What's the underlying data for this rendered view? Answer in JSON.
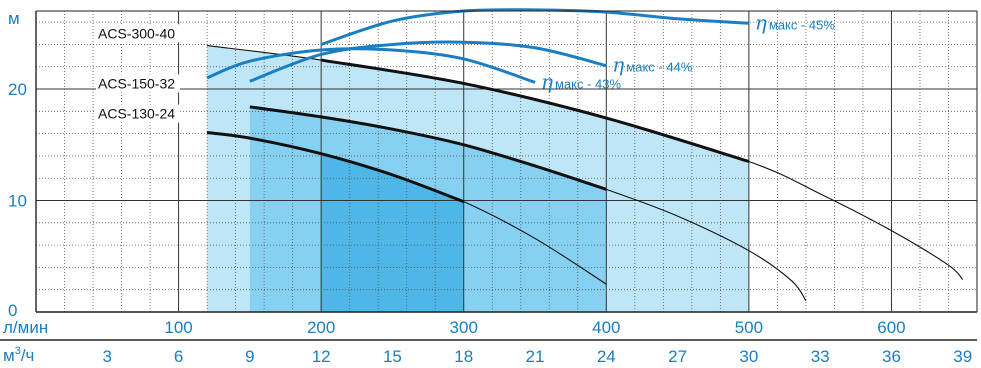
{
  "chart_data": {
    "type": "line",
    "y_label": "м",
    "y_ticks": [
      "0",
      "10",
      "20"
    ],
    "x_label": "л/мин",
    "x_ticks": [
      "100",
      "200",
      "300",
      "400",
      "500",
      "600"
    ],
    "x2_label_base": "м",
    "x2_label_sup": "3",
    "x2_label_tail": "/ч",
    "x2_ticks": [
      "3",
      "6",
      "9",
      "12",
      "15",
      "18",
      "21",
      "24",
      "27",
      "30",
      "33",
      "36",
      "39"
    ],
    "xlim": [
      0,
      660
    ],
    "ylim": [
      0,
      27
    ],
    "grid": true,
    "colors": {
      "efficiency": "#1a7fc2",
      "curve": "#111111",
      "zone_light": "#bfe6f7",
      "zone_mid": "#86d1f1",
      "zone_dark": "#4fb6e8",
      "tick_text": "#1a7fc2"
    },
    "series": [
      {
        "name": "ACS-300-40",
        "label_at": [
          10,
          25
        ],
        "curve": [
          [
            120,
            23.9
          ],
          [
            200,
            22.6
          ],
          [
            300,
            20.5
          ],
          [
            400,
            17.4
          ],
          [
            500,
            13.5
          ],
          [
            550,
            10.6
          ],
          [
            600,
            7.3
          ],
          [
            640,
            4.2
          ],
          [
            650,
            2.9
          ]
        ],
        "efficiency_name": "η",
        "efficiency_text": "макс - 45%",
        "efficiency": [
          [
            200,
            24
          ],
          [
            250,
            26.1
          ],
          [
            300,
            27
          ],
          [
            350,
            27.1
          ],
          [
            400,
            26.9
          ],
          [
            450,
            26.3
          ],
          [
            500,
            25.9
          ]
        ]
      },
      {
        "name": "ACS-150-32",
        "label_at": [
          10,
          20.5
        ],
        "curve": [
          [
            150,
            18.4
          ],
          [
            200,
            17.5
          ],
          [
            250,
            16.4
          ],
          [
            300,
            15
          ],
          [
            350,
            13.1
          ],
          [
            400,
            11
          ],
          [
            450,
            8.6
          ],
          [
            500,
            5.5
          ],
          [
            530,
            2.8
          ],
          [
            540,
            1
          ]
        ],
        "efficiency_name": "η",
        "efficiency_text": "макс - 44%",
        "efficiency": [
          [
            150,
            20.7
          ],
          [
            200,
            23.1
          ],
          [
            250,
            24
          ],
          [
            300,
            24.2
          ],
          [
            350,
            23.7
          ],
          [
            400,
            22.1
          ]
        ]
      },
      {
        "name": "ACS-130-24",
        "label_at": [
          10,
          17.8
        ],
        "curve": [
          [
            120,
            16.1
          ],
          [
            150,
            15.6
          ],
          [
            200,
            14.2
          ],
          [
            250,
            12.3
          ],
          [
            300,
            9.9
          ],
          [
            350,
            6.6
          ],
          [
            400,
            2.5
          ]
        ],
        "efficiency_name": "η",
        "efficiency_text": "макс - 43%",
        "efficiency": [
          [
            120,
            21
          ],
          [
            150,
            22.5
          ],
          [
            200,
            23.5
          ],
          [
            250,
            23.5
          ],
          [
            300,
            22.7
          ],
          [
            350,
            20.6
          ]
        ]
      }
    ],
    "zones": [
      {
        "x": [
          120,
          500
        ],
        "y_top": [
          0,
          0
        ],
        "shade": "zone_light"
      },
      {
        "x": [
          150,
          400
        ],
        "y_top": [
          0,
          0
        ],
        "shade": "zone_mid"
      },
      {
        "x": [
          200,
          300
        ],
        "y_top": [
          0,
          0
        ],
        "shade": "zone_dark"
      }
    ]
  }
}
